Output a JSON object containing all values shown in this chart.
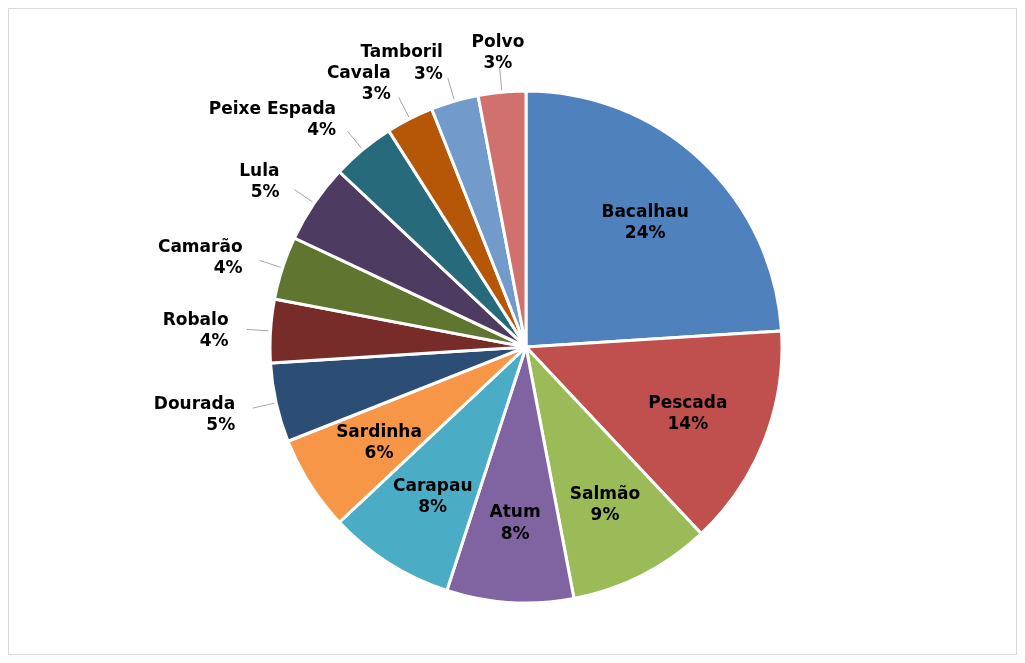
{
  "chart_data": {
    "type": "pie",
    "categories": [
      "Bacalhau",
      "Pescada",
      "Salmão",
      "Atum",
      "Carapau",
      "Sardinha",
      "Dourada",
      "Robalo",
      "Camarão",
      "Lula",
      "Peixe Espada",
      "Cavala",
      "Tamboril",
      "Polvo"
    ],
    "values": [
      24,
      14,
      9,
      8,
      8,
      6,
      5,
      4,
      4,
      5,
      4,
      3,
      3,
      3
    ],
    "value_labels": [
      "24%",
      "14%",
      "9%",
      "8%",
      "8%",
      "6%",
      "5%",
      "4%",
      "4%",
      "5%",
      "4%",
      "3%",
      "3%",
      "3%"
    ],
    "colors": [
      "#4f81bd",
      "#c0504d",
      "#9bbb59",
      "#8064a2",
      "#4bacc6",
      "#f79646",
      "#2c4d75",
      "#772c2a",
      "#5f7530",
      "#4d3b62",
      "#276a7c",
      "#b65708",
      "#729aca",
      "#d0716e"
    ]
  }
}
